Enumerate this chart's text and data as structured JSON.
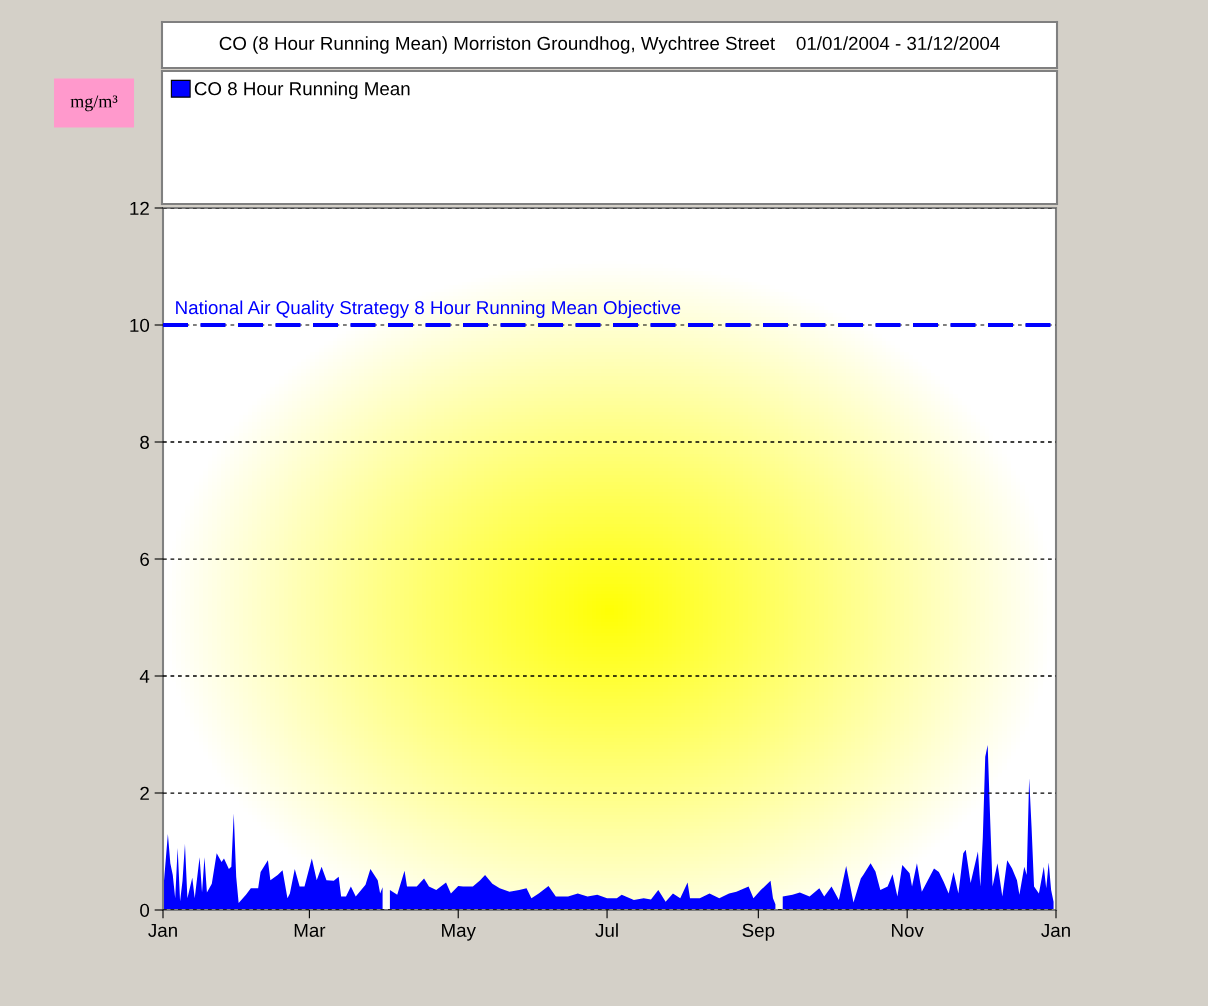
{
  "chart_data": {
    "type": "area",
    "title": "CO (8 Hour Running Mean) Morriston Groundhog, Wychtree Street    01/01/2004 - 31/12/2004",
    "annotations": [
      "mg/m³"
    ],
    "x": [
      "2004-01-01",
      "2004-01-03",
      "2004-01-04",
      "2004-01-05",
      "2004-01-06",
      "2004-01-07",
      "2004-01-08",
      "2004-01-09",
      "2004-01-10",
      "2004-01-11",
      "2004-01-13",
      "2004-01-14",
      "2004-01-16",
      "2004-01-17",
      "2004-01-18",
      "2004-01-19",
      "2004-01-21",
      "2004-01-23",
      "2004-01-25",
      "2004-01-26",
      "2004-01-28",
      "2004-01-29",
      "2004-01-30",
      "2004-01-31",
      "2004-02-01",
      "2004-02-04",
      "2004-02-06",
      "2004-02-09",
      "2004-02-10",
      "2004-02-13",
      "2004-02-14",
      "2004-02-17",
      "2004-02-19",
      "2004-02-21",
      "2004-02-22",
      "2004-02-24",
      "2004-02-26",
      "2004-02-28",
      "2004-03-02",
      "2004-03-04",
      "2004-03-06",
      "2004-03-08",
      "2004-03-11",
      "2004-03-13",
      "2004-03-14",
      "2004-03-16",
      "2004-03-18",
      "2004-03-20",
      "2004-03-24",
      "2004-03-26",
      "2004-03-29",
      "2004-03-30",
      "2004-03-31",
      "2004-04-01",
      "2004-04-03",
      "2004-04-06",
      "2004-04-09",
      "2004-04-10",
      "2004-04-14",
      "2004-04-17",
      "2004-04-19",
      "2004-04-22",
      "2004-04-26",
      "2004-04-28",
      "2004-05-01",
      "2004-05-03",
      "2004-05-07",
      "2004-05-10",
      "2004-05-12",
      "2004-05-15",
      "2004-05-18",
      "2004-05-22",
      "2004-05-26",
      "2004-05-29",
      "2004-05-31",
      "2004-06-03",
      "2004-06-07",
      "2004-06-10",
      "2004-06-15",
      "2004-06-19",
      "2004-06-23",
      "2004-06-27",
      "2004-07-01",
      "2004-07-05",
      "2004-07-07",
      "2004-07-12",
      "2004-07-16",
      "2004-07-19",
      "2004-07-22",
      "2004-07-25",
      "2004-07-28",
      "2004-07-31",
      "2004-08-03",
      "2004-08-04",
      "2004-08-08",
      "2004-08-12",
      "2004-08-16",
      "2004-08-20",
      "2004-08-23",
      "2004-08-28",
      "2004-08-30",
      "2004-09-02",
      "2004-09-06",
      "2004-09-07",
      "2004-09-08",
      "2004-09-10",
      "2004-09-11",
      "2004-09-15",
      "2004-09-18",
      "2004-09-22",
      "2004-09-26",
      "2004-09-28",
      "2004-10-01",
      "2004-10-04",
      "2004-10-07",
      "2004-10-10",
      "2004-10-13",
      "2004-10-14",
      "2004-10-17",
      "2004-10-19",
      "2004-10-21",
      "2004-10-24",
      "2004-10-26",
      "2004-10-28",
      "2004-10-30",
      "2004-11-02",
      "2004-11-03",
      "2004-11-05",
      "2004-11-07",
      "2004-11-12",
      "2004-11-14",
      "2004-11-16",
      "2004-11-18",
      "2004-11-20",
      "2004-11-22",
      "2004-11-24",
      "2004-11-25",
      "2004-11-27",
      "2004-11-30",
      "2004-12-01",
      "2004-12-02",
      "2004-12-03",
      "2004-12-04",
      "2004-12-05",
      "2004-12-06",
      "2004-12-08",
      "2004-12-10",
      "2004-12-12",
      "2004-12-14",
      "2004-12-16",
      "2004-12-17",
      "2004-12-19",
      "2004-12-20",
      "2004-12-21",
      "2004-12-22",
      "2004-12-23",
      "2004-12-25",
      "2004-12-27",
      "2004-12-28",
      "2004-12-29",
      "2004-12-30",
      "2004-12-31"
    ],
    "series": [
      {
        "name": "CO 8 Hour Running Mean",
        "color": "#0000ff",
        "values": [
          0.29,
          1.3,
          0.8,
          0.6,
          0.2,
          1.06,
          0.15,
          0.5,
          1.13,
          0.2,
          0.55,
          0.2,
          0.9,
          0.3,
          0.9,
          0.3,
          0.45,
          0.97,
          0.82,
          0.88,
          0.7,
          0.74,
          1.65,
          0.57,
          0.12,
          0.26,
          0.37,
          0.37,
          0.65,
          0.85,
          0.51,
          0.6,
          0.68,
          0.2,
          0.28,
          0.7,
          0.4,
          0.4,
          0.88,
          0.51,
          0.74,
          0.51,
          0.5,
          0.57,
          0.23,
          0.23,
          0.4,
          0.23,
          0.43,
          0.7,
          0.51,
          0.28,
          0.39,
          null,
          0.34,
          0.26,
          0.67,
          0.4,
          0.4,
          0.54,
          0.4,
          0.34,
          0.47,
          0.28,
          0.41,
          0.4,
          0.4,
          0.51,
          0.6,
          0.45,
          0.37,
          0.31,
          0.34,
          0.37,
          0.2,
          0.28,
          0.41,
          0.23,
          0.23,
          0.28,
          0.23,
          0.26,
          0.2,
          0.2,
          0.26,
          0.17,
          0.2,
          0.18,
          0.34,
          0.14,
          0.28,
          0.2,
          0.47,
          0.2,
          0.2,
          0.28,
          0.2,
          0.28,
          0.31,
          0.4,
          0.2,
          0.34,
          0.5,
          0.2,
          0.1,
          null,
          0.23,
          0.26,
          0.3,
          0.23,
          0.37,
          0.23,
          0.4,
          0.17,
          0.75,
          0.13,
          0.54,
          0.6,
          0.8,
          0.66,
          0.34,
          0.4,
          0.61,
          0.23,
          0.77,
          0.63,
          0.4,
          0.8,
          0.31,
          0.71,
          0.65,
          0.48,
          0.28,
          0.65,
          0.28,
          0.97,
          1.03,
          0.46,
          1.0,
          0.4,
          1.23,
          2.62,
          2.82,
          1.57,
          0.4,
          0.8,
          0.23,
          0.85,
          0.71,
          0.51,
          0.26,
          0.74,
          0.6,
          2.25,
          1.4,
          0.4,
          0.28,
          0.74,
          0.37,
          0.81,
          0.34,
          0.14
        ]
      }
    ],
    "xlim": [
      "2004-01-01",
      "2005-01-01"
    ],
    "xticks": [
      {
        "value": "2004-01-01",
        "label": "Jan"
      },
      {
        "value": "2004-03-01",
        "label": "Mar"
      },
      {
        "value": "2004-05-01",
        "label": "May"
      },
      {
        "value": "2004-07-01",
        "label": "Jul"
      },
      {
        "value": "2004-09-01",
        "label": "Sep"
      },
      {
        "value": "2004-11-01",
        "label": "Nov"
      },
      {
        "value": "2005-01-01",
        "label": "Jan"
      }
    ],
    "ylim": [
      0,
      12
    ],
    "yticks": [
      0,
      2,
      4,
      6,
      8,
      10,
      12
    ],
    "grid": "y",
    "legend": "top left",
    "ref_lines": [
      {
        "axis": "y",
        "value": 10,
        "label": "National Air Quality Strategy 8 Hour Running Mean Objective",
        "color": "#0000ff",
        "line_style": "dashed"
      }
    ]
  }
}
